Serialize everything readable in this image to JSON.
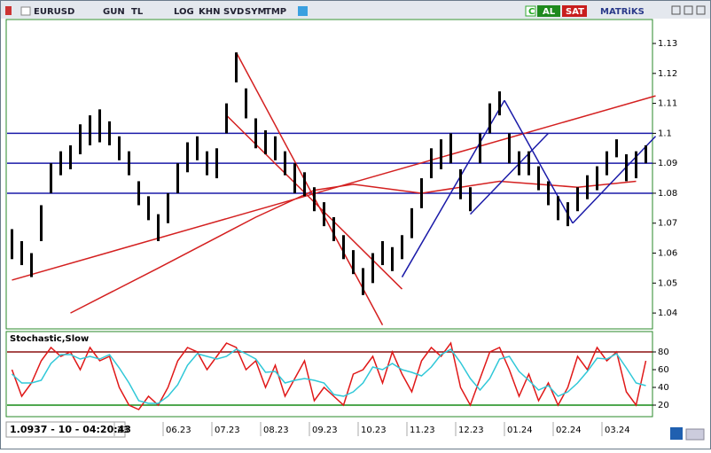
{
  "toolbar": {
    "symbol": "EURUSD",
    "buttons": [
      "GUN",
      "TL",
      "LOG",
      "KHN",
      "SVD",
      "SYM",
      "TMP"
    ],
    "mode": "C",
    "buy": "AL",
    "sell": "SAT",
    "brand": "MATRiKS"
  },
  "chart_data": [
    {
      "type": "range-bar",
      "color": "#000000",
      "categories": [
        null,
        null,
        null,
        null,
        null,
        null,
        null,
        null,
        null,
        null,
        null,
        "23",
        null,
        null,
        null,
        null,
        "06.23",
        null,
        null,
        null,
        null,
        "07.23",
        null,
        null,
        null,
        null,
        "08.23",
        null,
        null,
        null,
        null,
        "09.23",
        null,
        null,
        null,
        null,
        "10.23",
        null,
        null,
        null,
        null,
        "11.23",
        null,
        null,
        null,
        null,
        "12.23",
        null,
        null,
        null,
        null,
        "01.24",
        null,
        null,
        null,
        null,
        "02.24",
        null,
        null,
        null,
        null,
        "03.24",
        null,
        null,
        null,
        null
      ],
      "high": [
        1.068,
        1.064,
        1.06,
        1.076,
        1.09,
        1.094,
        1.096,
        1.103,
        1.106,
        1.108,
        1.104,
        1.099,
        1.094,
        1.084,
        1.079,
        1.073,
        1.08,
        1.09,
        1.097,
        1.099,
        1.094,
        1.095,
        1.11,
        1.127,
        1.115,
        1.105,
        1.101,
        1.099,
        1.094,
        1.09,
        1.087,
        1.082,
        1.077,
        1.072,
        1.066,
        1.061,
        1.055,
        1.06,
        1.064,
        1.062,
        1.066,
        1.075,
        1.085,
        1.095,
        1.098,
        1.1,
        1.088,
        1.082,
        1.1,
        1.11,
        1.114,
        1.1,
        1.094,
        1.094,
        1.089,
        1.084,
        1.079,
        1.077,
        1.082,
        1.086,
        1.089,
        1.094,
        1.098,
        1.093,
        1.094,
        1.096
      ],
      "low": [
        1.058,
        1.056,
        1.052,
        1.064,
        1.08,
        1.086,
        1.088,
        1.093,
        1.096,
        1.097,
        1.096,
        1.091,
        1.086,
        1.076,
        1.071,
        1.064,
        1.07,
        1.08,
        1.087,
        1.091,
        1.086,
        1.085,
        1.1,
        1.117,
        1.105,
        1.095,
        1.093,
        1.091,
        1.086,
        1.08,
        1.079,
        1.074,
        1.069,
        1.064,
        1.058,
        1.053,
        1.046,
        1.05,
        1.056,
        1.054,
        1.058,
        1.065,
        1.075,
        1.085,
        1.088,
        1.09,
        1.078,
        1.074,
        1.09,
        1.1,
        1.106,
        1.09,
        1.086,
        1.086,
        1.081,
        1.076,
        1.071,
        1.069,
        1.074,
        1.078,
        1.081,
        1.086,
        1.092,
        1.084,
        1.085,
        1.09
      ],
      "ylim": [
        1.035,
        1.138
      ],
      "yticks": [
        1.13,
        1.12,
        1.11,
        1.1,
        1.09,
        1.08,
        1.07,
        1.06,
        1.05,
        1.04
      ],
      "hlines": [
        1.1,
        1.09,
        1.08
      ],
      "hline_color": "#1a1aa8",
      "trendlines": [
        {
          "color": "#d42020",
          "x": [
            0,
            66
          ],
          "y": [
            1.051,
            1.1125
          ]
        },
        {
          "color": "#d42020",
          "x": [
            23,
            38
          ],
          "y": [
            1.127,
            1.036
          ]
        },
        {
          "color": "#d42020",
          "x": [
            22,
            40
          ],
          "y": [
            1.106,
            1.048
          ]
        },
        {
          "color": "#1a1aa8",
          "x": [
            40,
            50.5
          ],
          "y": [
            1.052,
            1.111
          ]
        },
        {
          "color": "#1a1aa8",
          "x": [
            47,
            55
          ],
          "y": [
            1.073,
            1.1
          ]
        },
        {
          "color": "#1a1aa8",
          "x": [
            50.5,
            57.5
          ],
          "y": [
            1.111,
            1.07
          ]
        },
        {
          "color": "#1a1aa8",
          "x": [
            57.5,
            66
          ],
          "y": [
            1.07,
            1.099
          ]
        }
      ],
      "moving_average": {
        "color": "#d42020",
        "x": [
          6,
          15,
          25,
          31,
          35,
          42,
          50,
          58,
          64
        ],
        "y": [
          1.04,
          1.055,
          1.072,
          1.081,
          1.083,
          1.08,
          1.084,
          1.082,
          1.084
        ]
      }
    },
    {
      "type": "line",
      "title": "Stochastic,Slow",
      "ylim": [
        7,
        102
      ],
      "yticks": [
        80,
        60,
        40,
        20
      ],
      "bands": [
        {
          "value": 80,
          "color": "#8b1010"
        },
        {
          "value": 20,
          "color": "#168a16"
        }
      ],
      "series": [
        {
          "color": "#e01818",
          "values": [
            60,
            30,
            45,
            70,
            85,
            75,
            80,
            60,
            85,
            70,
            75,
            40,
            20,
            15,
            30,
            20,
            40,
            70,
            85,
            80,
            60,
            75,
            90,
            85,
            60,
            70,
            40,
            65,
            30,
            50,
            70,
            25,
            40,
            30,
            20,
            55,
            60,
            75,
            45,
            80,
            55,
            35,
            70,
            85,
            75,
            90,
            40,
            20,
            50,
            80,
            85,
            60,
            30,
            55,
            25,
            45,
            20,
            40,
            75,
            60,
            85,
            70,
            80,
            35,
            20,
            70
          ]
        },
        {
          "color": "#30c8d8",
          "values": [
            55,
            45,
            45,
            48,
            67,
            77,
            77,
            72,
            75,
            72,
            77,
            62,
            45,
            25,
            22,
            22,
            30,
            43,
            65,
            78,
            75,
            72,
            75,
            83,
            78,
            72,
            57,
            58,
            45,
            48,
            50,
            48,
            45,
            32,
            30,
            35,
            45,
            63,
            60,
            67,
            60,
            57,
            53,
            63,
            77,
            83,
            68,
            50,
            37,
            50,
            72,
            75,
            58,
            48,
            37,
            42,
            30,
            35,
            45,
            58,
            73,
            72,
            78,
            62,
            45,
            42
          ]
        }
      ]
    }
  ],
  "status": "1.0937 - 10 - 04:20:43"
}
